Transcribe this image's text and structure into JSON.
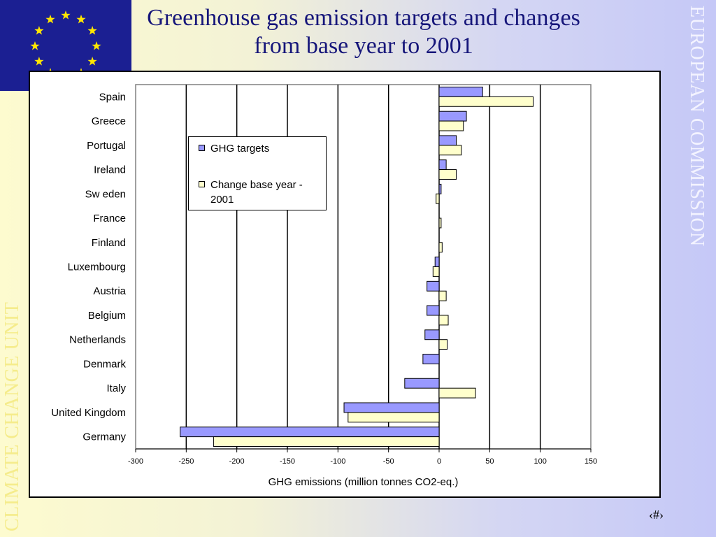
{
  "slide": {
    "title": "Greenhouse gas emission targets and changes from base year to 2001",
    "side_left": "CLIMATE CHANGE UNIT",
    "side_right": "EUROPEAN COMMISSION",
    "slide_number": "‹#›"
  },
  "colors": {
    "targets_fill": "#9999ff",
    "change_fill": "#ffffcc",
    "flag_blue": "#1b1f92",
    "flag_star": "#ffe600"
  },
  "icons": {
    "flag": "eu-flag-icon"
  },
  "chart_data": {
    "type": "bar",
    "orientation": "horizontal",
    "categories": [
      "Spain",
      "Greece",
      "Portugal",
      "Ireland",
      "Sw eden",
      "France",
      "Finland",
      "Luxembourg",
      "Austria",
      "Belgium",
      "Netherlands",
      "Denmark",
      "Italy",
      "United Kingdom",
      "Germany"
    ],
    "series": [
      {
        "name": "GHG targets",
        "values": [
          43,
          27,
          17,
          7,
          2,
          0,
          0,
          -4,
          -12,
          -12,
          -14,
          -16,
          -34,
          -94,
          -256
        ]
      },
      {
        "name": "Change base year - 2001",
        "values": [
          93,
          24,
          22,
          17,
          -3,
          2,
          3,
          -6,
          7,
          9,
          8,
          0,
          36,
          -90,
          -223
        ]
      }
    ],
    "xlabel": "GHG emissions (million tonnes CO2-eq.)",
    "ylabel": "",
    "title": "",
    "xlim": [
      -300,
      150
    ],
    "xticks": [
      -300,
      -250,
      -200,
      -150,
      -100,
      -50,
      0,
      50,
      100,
      150
    ],
    "grid": "vertical",
    "legend_position": "top-left"
  }
}
